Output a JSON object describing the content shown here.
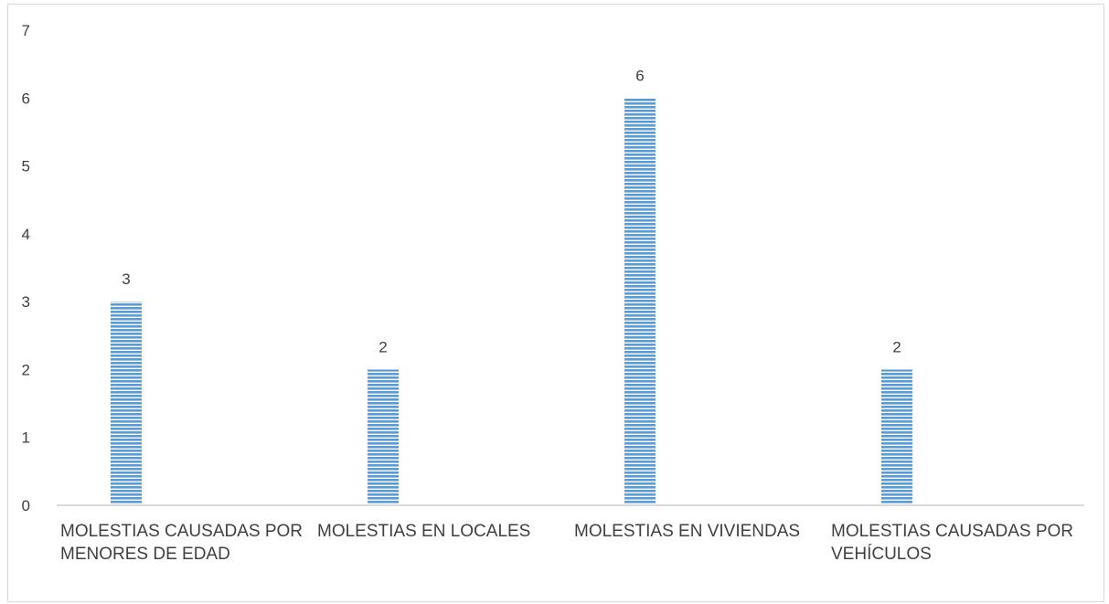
{
  "chart_data": {
    "type": "bar",
    "categories": [
      "MOLESTIAS CAUSADAS POR MENORES DE EDAD",
      "MOLESTIAS EN LOCALES",
      "MOLESTIAS EN VIVIENDAS",
      "MOLESTIAS CAUSADAS POR VEHÍCULOS"
    ],
    "values": [
      3,
      2,
      6,
      2
    ],
    "data_labels": [
      "3",
      "2",
      "6",
      "2"
    ],
    "y_ticks": [
      "0",
      "1",
      "2",
      "3",
      "4",
      "5",
      "6",
      "7"
    ],
    "ylim": [
      0,
      7
    ],
    "grid": false,
    "legend": "none",
    "bar_color": "#5b9bd5"
  }
}
